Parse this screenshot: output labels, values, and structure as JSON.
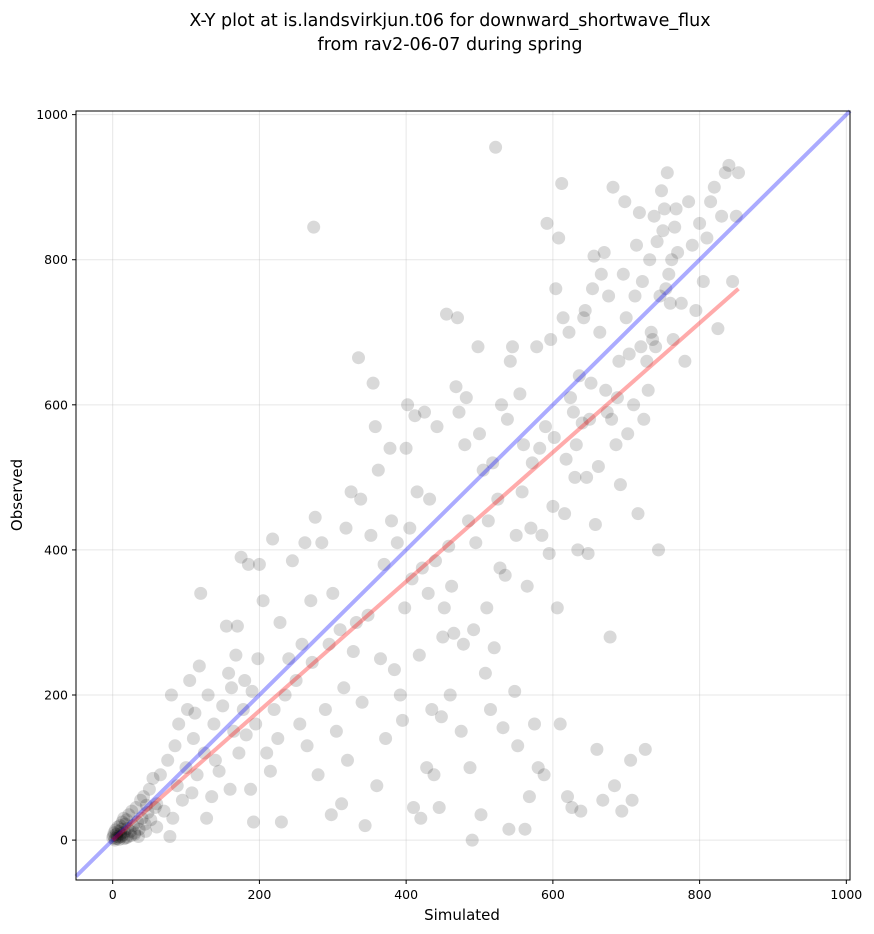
{
  "chart_data": {
    "type": "scatter",
    "title_line1": "X-Y plot at is.landsvirkjun.t06 for downward_shortwave_flux",
    "title_line2": "from rav2-06-07 during spring",
    "xlabel": "Simulated",
    "ylabel": "Observed",
    "xlim": [
      -50,
      1005
    ],
    "ylim": [
      -55,
      1005
    ],
    "xticks": [
      0,
      200,
      400,
      600,
      800,
      1000
    ],
    "yticks": [
      0,
      200,
      400,
      600,
      800,
      1000
    ],
    "grid": true,
    "colors": {
      "points": "#000000",
      "one_to_one": "#0000ff",
      "regression": "#ff0000"
    },
    "one_to_one_line": {
      "x": [
        -50,
        1005
      ],
      "y": [
        -50,
        1005
      ]
    },
    "regression_line": {
      "x": [
        0,
        853
      ],
      "y": [
        0,
        760
      ]
    },
    "points": [
      [
        0,
        3
      ],
      [
        1,
        6
      ],
      [
        2,
        10
      ],
      [
        3,
        2
      ],
      [
        4,
        14
      ],
      [
        5,
        8
      ],
      [
        6,
        5
      ],
      [
        7,
        18
      ],
      [
        8,
        12
      ],
      [
        9,
        4
      ],
      [
        10,
        20
      ],
      [
        11,
        9
      ],
      [
        12,
        15
      ],
      [
        13,
        25
      ],
      [
        14,
        7
      ],
      [
        15,
        30
      ],
      [
        16,
        11
      ],
      [
        17,
        22
      ],
      [
        18,
        3
      ],
      [
        19,
        28
      ],
      [
        20,
        16
      ],
      [
        22,
        35
      ],
      [
        24,
        12
      ],
      [
        26,
        40
      ],
      [
        28,
        20
      ],
      [
        30,
        8
      ],
      [
        32,
        45
      ],
      [
        34,
        25
      ],
      [
        36,
        15
      ],
      [
        38,
        55
      ],
      [
        40,
        30
      ],
      [
        42,
        60
      ],
      [
        44,
        22
      ],
      [
        46,
        48
      ],
      [
        48,
        38
      ],
      [
        50,
        70
      ],
      [
        52,
        28
      ],
      [
        55,
        85
      ],
      [
        58,
        45
      ],
      [
        60,
        18
      ],
      [
        3,
        0
      ],
      [
        6,
        2
      ],
      [
        9,
        1
      ],
      [
        12,
        5
      ],
      [
        15,
        2
      ],
      [
        20,
        4
      ],
      [
        25,
        6
      ],
      [
        30,
        10
      ],
      [
        35,
        5
      ],
      [
        45,
        12
      ],
      [
        60,
        50
      ],
      [
        65,
        90
      ],
      [
        70,
        40
      ],
      [
        75,
        110
      ],
      [
        78,
        5
      ],
      [
        80,
        200
      ],
      [
        82,
        30
      ],
      [
        85,
        130
      ],
      [
        88,
        75
      ],
      [
        90,
        160
      ],
      [
        95,
        55
      ],
      [
        100,
        100
      ],
      [
        102,
        180
      ],
      [
        105,
        220
      ],
      [
        108,
        65
      ],
      [
        110,
        140
      ],
      [
        112,
        175
      ],
      [
        115,
        90
      ],
      [
        118,
        240
      ],
      [
        120,
        340
      ],
      [
        125,
        120
      ],
      [
        128,
        30
      ],
      [
        130,
        200
      ],
      [
        135,
        60
      ],
      [
        138,
        160
      ],
      [
        140,
        110
      ],
      [
        145,
        95
      ],
      [
        150,
        185
      ],
      [
        155,
        295
      ],
      [
        158,
        230
      ],
      [
        160,
        70
      ],
      [
        162,
        210
      ],
      [
        165,
        150
      ],
      [
        168,
        255
      ],
      [
        170,
        295
      ],
      [
        172,
        120
      ],
      [
        175,
        390
      ],
      [
        178,
        180
      ],
      [
        180,
        220
      ],
      [
        182,
        145
      ],
      [
        185,
        380
      ],
      [
        188,
        70
      ],
      [
        190,
        205
      ],
      [
        192,
        25
      ],
      [
        195,
        160
      ],
      [
        198,
        250
      ],
      [
        200,
        380
      ],
      [
        205,
        330
      ],
      [
        210,
        120
      ],
      [
        215,
        95
      ],
      [
        218,
        415
      ],
      [
        220,
        180
      ],
      [
        225,
        140
      ],
      [
        228,
        300
      ],
      [
        230,
        25
      ],
      [
        235,
        200
      ],
      [
        240,
        250
      ],
      [
        245,
        385
      ],
      [
        250,
        220
      ],
      [
        255,
        160
      ],
      [
        258,
        270
      ],
      [
        262,
        410
      ],
      [
        265,
        130
      ],
      [
        270,
        330
      ],
      [
        272,
        245
      ],
      [
        274,
        845
      ],
      [
        276,
        445
      ],
      [
        280,
        90
      ],
      [
        285,
        410
      ],
      [
        290,
        180
      ],
      [
        295,
        270
      ],
      [
        298,
        35
      ],
      [
        300,
        340
      ],
      [
        305,
        150
      ],
      [
        310,
        290
      ],
      [
        312,
        50
      ],
      [
        315,
        210
      ],
      [
        318,
        430
      ],
      [
        320,
        110
      ],
      [
        325,
        480
      ],
      [
        328,
        260
      ],
      [
        332,
        300
      ],
      [
        335,
        665
      ],
      [
        338,
        470
      ],
      [
        340,
        190
      ],
      [
        344,
        20
      ],
      [
        348,
        310
      ],
      [
        352,
        420
      ],
      [
        355,
        630
      ],
      [
        358,
        570
      ],
      [
        360,
        75
      ],
      [
        362,
        510
      ],
      [
        365,
        250
      ],
      [
        370,
        380
      ],
      [
        372,
        140
      ],
      [
        378,
        540
      ],
      [
        380,
        440
      ],
      [
        384,
        235
      ],
      [
        388,
        410
      ],
      [
        392,
        200
      ],
      [
        395,
        165
      ],
      [
        398,
        320
      ],
      [
        400,
        540
      ],
      [
        402,
        600
      ],
      [
        405,
        430
      ],
      [
        408,
        360
      ],
      [
        410,
        45
      ],
      [
        412,
        585
      ],
      [
        415,
        480
      ],
      [
        418,
        255
      ],
      [
        420,
        30
      ],
      [
        422,
        375
      ],
      [
        425,
        590
      ],
      [
        428,
        100
      ],
      [
        430,
        340
      ],
      [
        432,
        470
      ],
      [
        435,
        180
      ],
      [
        438,
        90
      ],
      [
        440,
        385
      ],
      [
        442,
        570
      ],
      [
        445,
        45
      ],
      [
        448,
        170
      ],
      [
        450,
        280
      ],
      [
        452,
        320
      ],
      [
        455,
        725
      ],
      [
        458,
        405
      ],
      [
        460,
        200
      ],
      [
        462,
        350
      ],
      [
        465,
        285
      ],
      [
        468,
        625
      ],
      [
        470,
        720
      ],
      [
        472,
        590
      ],
      [
        475,
        150
      ],
      [
        478,
        270
      ],
      [
        480,
        545
      ],
      [
        482,
        610
      ],
      [
        485,
        440
      ],
      [
        487,
        100
      ],
      [
        490,
        0
      ],
      [
        492,
        290
      ],
      [
        495,
        410
      ],
      [
        498,
        680
      ],
      [
        500,
        560
      ],
      [
        502,
        35
      ],
      [
        505,
        510
      ],
      [
        508,
        230
      ],
      [
        510,
        320
      ],
      [
        512,
        440
      ],
      [
        515,
        180
      ],
      [
        518,
        520
      ],
      [
        520,
        265
      ],
      [
        522,
        955
      ],
      [
        525,
        470
      ],
      [
        528,
        375
      ],
      [
        530,
        600
      ],
      [
        532,
        155
      ],
      [
        535,
        365
      ],
      [
        538,
        580
      ],
      [
        540,
        15
      ],
      [
        542,
        660
      ],
      [
        545,
        680
      ],
      [
        548,
        205
      ],
      [
        550,
        420
      ],
      [
        552,
        130
      ],
      [
        555,
        615
      ],
      [
        558,
        480
      ],
      [
        560,
        545
      ],
      [
        562,
        15
      ],
      [
        565,
        350
      ],
      [
        568,
        60
      ],
      [
        570,
        430
      ],
      [
        572,
        520
      ],
      [
        575,
        160
      ],
      [
        578,
        680
      ],
      [
        580,
        100
      ],
      [
        582,
        540
      ],
      [
        585,
        420
      ],
      [
        588,
        90
      ],
      [
        590,
        570
      ],
      [
        592,
        850
      ],
      [
        595,
        395
      ],
      [
        597,
        690
      ],
      [
        600,
        460
      ],
      [
        602,
        555
      ],
      [
        604,
        760
      ],
      [
        606,
        320
      ],
      [
        608,
        830
      ],
      [
        610,
        160
      ],
      [
        612,
        905
      ],
      [
        614,
        720
      ],
      [
        616,
        450
      ],
      [
        618,
        525
      ],
      [
        620,
        60
      ],
      [
        622,
        700
      ],
      [
        624,
        610
      ],
      [
        626,
        45
      ],
      [
        628,
        590
      ],
      [
        630,
        500
      ],
      [
        632,
        545
      ],
      [
        634,
        400
      ],
      [
        636,
        640
      ],
      [
        638,
        40
      ],
      [
        640,
        575
      ],
      [
        642,
        720
      ],
      [
        644,
        730
      ],
      [
        646,
        500
      ],
      [
        648,
        395
      ],
      [
        650,
        580
      ],
      [
        652,
        630
      ],
      [
        654,
        760
      ],
      [
        656,
        805
      ],
      [
        658,
        435
      ],
      [
        660,
        125
      ],
      [
        662,
        515
      ],
      [
        664,
        700
      ],
      [
        666,
        780
      ],
      [
        668,
        55
      ],
      [
        670,
        810
      ],
      [
        672,
        620
      ],
      [
        674,
        590
      ],
      [
        676,
        750
      ],
      [
        678,
        280
      ],
      [
        680,
        580
      ],
      [
        682,
        900
      ],
      [
        684,
        75
      ],
      [
        686,
        545
      ],
      [
        688,
        610
      ],
      [
        690,
        660
      ],
      [
        692,
        490
      ],
      [
        694,
        40
      ],
      [
        696,
        780
      ],
      [
        698,
        880
      ],
      [
        700,
        720
      ],
      [
        702,
        560
      ],
      [
        704,
        670
      ],
      [
        706,
        110
      ],
      [
        708,
        55
      ],
      [
        710,
        600
      ],
      [
        712,
        750
      ],
      [
        714,
        820
      ],
      [
        716,
        450
      ],
      [
        718,
        865
      ],
      [
        720,
        680
      ],
      [
        722,
        770
      ],
      [
        724,
        580
      ],
      [
        726,
        125
      ],
      [
        728,
        660
      ],
      [
        730,
        620
      ],
      [
        732,
        800
      ],
      [
        734,
        700
      ],
      [
        736,
        690
      ],
      [
        738,
        860
      ],
      [
        740,
        680
      ],
      [
        742,
        825
      ],
      [
        744,
        400
      ],
      [
        746,
        750
      ],
      [
        748,
        895
      ],
      [
        750,
        840
      ],
      [
        752,
        870
      ],
      [
        754,
        760
      ],
      [
        756,
        920
      ],
      [
        758,
        780
      ],
      [
        760,
        740
      ],
      [
        762,
        800
      ],
      [
        764,
        690
      ],
      [
        766,
        845
      ],
      [
        768,
        870
      ],
      [
        770,
        810
      ],
      [
        775,
        740
      ],
      [
        780,
        660
      ],
      [
        785,
        880
      ],
      [
        790,
        820
      ],
      [
        795,
        730
      ],
      [
        800,
        850
      ],
      [
        805,
        770
      ],
      [
        810,
        830
      ],
      [
        815,
        880
      ],
      [
        820,
        900
      ],
      [
        825,
        705
      ],
      [
        830,
        860
      ],
      [
        835,
        920
      ],
      [
        840,
        930
      ],
      [
        845,
        770
      ],
      [
        850,
        860
      ],
      [
        853,
        920
      ]
    ]
  }
}
